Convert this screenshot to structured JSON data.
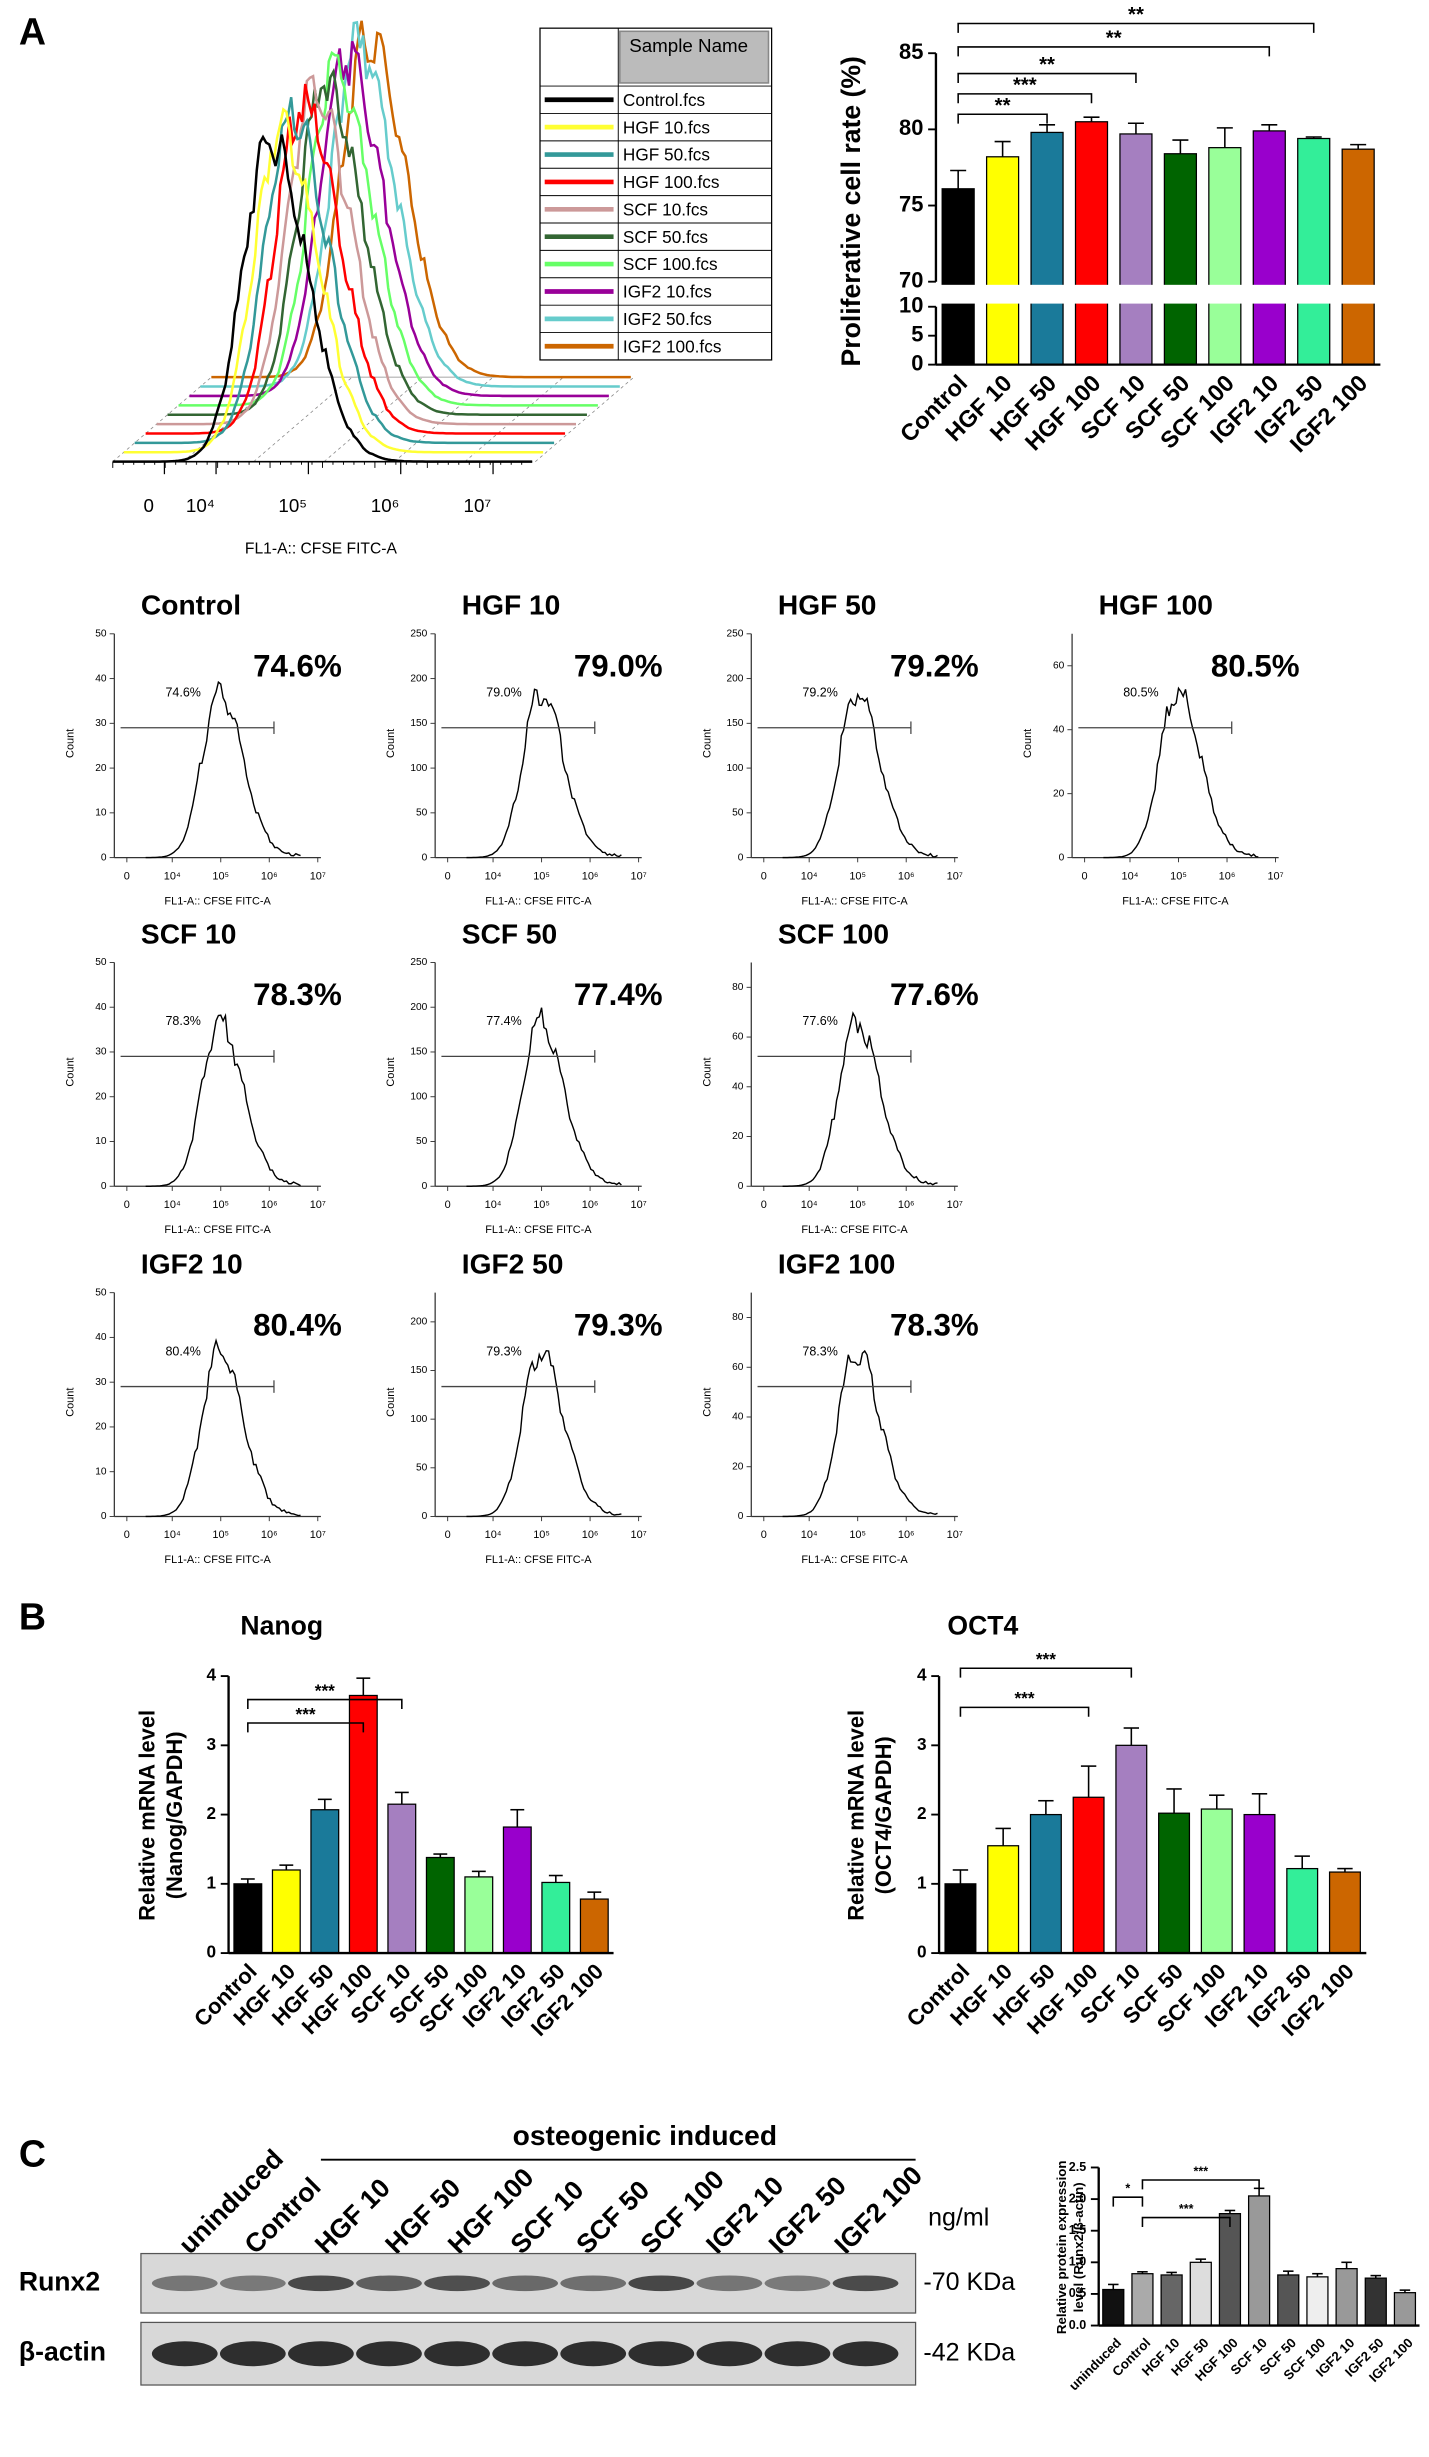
{
  "panels": [
    "A",
    "B",
    "C"
  ],
  "blot": {
    "lanes": [
      "uninduced",
      "Control",
      "HGF 10",
      "HGF 50",
      "HGF 100",
      "SCF 10",
      "SCF 50",
      "SCF 100",
      "IGF2 10",
      "IGF2 50",
      "IGF2 100"
    ],
    "group_label": "osteogenic induced",
    "unit": "ng/ml",
    "rows": [
      {
        "name": "Runx2",
        "size": "-70 KDa"
      },
      {
        "name": "β-actin",
        "size": "-42 KDa"
      }
    ]
  },
  "chart_data": [
    {
      "type": "histogram-overlay",
      "xlabel": "FL1-A:: CFSE FITC-A",
      "legend_title": "Sample Name",
      "log_scale": true,
      "xticks": [
        0,
        {
          "value": 10000,
          "label": "10⁴"
        },
        {
          "value": 100000,
          "label": "10⁵"
        },
        {
          "value": 1000000,
          "label": "10⁶"
        },
        {
          "value": 10000000,
          "label": "10⁷"
        }
      ],
      "series": [
        {
          "name": "Control.fcs",
          "color": "#000000"
        },
        {
          "name": "HGF 10.fcs",
          "color": "#ffff33"
        },
        {
          "name": "HGF 50.fcs",
          "color": "#339999"
        },
        {
          "name": "HGF 100.fcs",
          "color": "#ff0000"
        },
        {
          "name": "SCF 10.fcs",
          "color": "#cc9999"
        },
        {
          "name": "SCF 50.fcs",
          "color": "#336633"
        },
        {
          "name": "SCF 100.fcs",
          "color": "#66ff66"
        },
        {
          "name": "IGF2 10.fcs",
          "color": "#990099"
        },
        {
          "name": "IGF2 50.fcs",
          "color": "#66cccc"
        },
        {
          "name": "IGF2 100.fcs",
          "color": "#cc6600"
        }
      ]
    },
    {
      "type": "bar",
      "ylabel": "Proliferative cell rate (%)",
      "categories": [
        "Control",
        "HGF 10",
        "HGF 50",
        "HGF 100",
        "SCF 10",
        "SCF 50",
        "SCF 100",
        "IGF2 10",
        "IGF2 50",
        "IGF2 100"
      ],
      "values": [
        76.1,
        78.2,
        79.8,
        80.5,
        79.7,
        78.4,
        78.8,
        79.9,
        79.4,
        78.7
      ],
      "errors": [
        1.2,
        1.0,
        0.5,
        0.3,
        0.7,
        0.9,
        1.3,
        0.4,
        0.1,
        0.3
      ],
      "colors": [
        "#000000",
        "#ffff00",
        "#1a7a9a",
        "#ff0000",
        "#a57fc0",
        "#006400",
        "#99ff99",
        "#9900cc",
        "#33ee99",
        "#cc6600"
      ],
      "ylim": [
        0,
        85
      ],
      "yticks": [
        0,
        5,
        10,
        70,
        75,
        80,
        85
      ],
      "axis_break": [
        10,
        70
      ],
      "annotations": [
        {
          "text": "**",
          "from": "Control",
          "to": "HGF 50"
        },
        {
          "text": "***",
          "from": "Control",
          "to": "HGF 100"
        },
        {
          "text": "**",
          "from": "Control",
          "to": "SCF 10"
        },
        {
          "text": "**",
          "from": "Control",
          "to": "IGF2 10"
        },
        {
          "text": "**",
          "from": "Control",
          "to": "IGF2 50"
        }
      ]
    },
    {
      "type": "flow",
      "title": "Control",
      "values": [
        74.6
      ],
      "value_labels": [
        "74.6%"
      ],
      "ylabel": "Count",
      "xlabel": "FL1-A:: CFSE FITC-A",
      "ylim": [
        0,
        50
      ],
      "yticks": [
        0,
        10,
        20,
        30,
        40,
        50
      ],
      "xticks": [
        0,
        {
          "value": 10000,
          "label": "10⁴"
        },
        {
          "value": 100000,
          "label": "10⁵"
        },
        {
          "value": 1000000,
          "label": "10⁶"
        },
        {
          "value": 10000000,
          "label": "10⁷"
        }
      ]
    },
    {
      "type": "flow",
      "title": "HGF 10",
      "values": [
        79.0
      ],
      "value_labels": [
        "79.0%"
      ],
      "ylabel": "Count",
      "xlabel": "FL1-A:: CFSE FITC-A",
      "ylim": [
        0,
        250
      ],
      "yticks": [
        0,
        50,
        100,
        150,
        200,
        250
      ],
      "xticks": [
        0,
        {
          "value": 10000,
          "label": "10⁴"
        },
        {
          "value": 100000,
          "label": "10⁵"
        },
        {
          "value": 1000000,
          "label": "10⁶"
        },
        {
          "value": 10000000,
          "label": "10⁷"
        }
      ]
    },
    {
      "type": "flow",
      "title": "HGF 50",
      "values": [
        79.2
      ],
      "value_labels": [
        "79.2%"
      ],
      "ylabel": "Count",
      "xlabel": "FL1-A:: CFSE FITC-A",
      "ylim": [
        0,
        250
      ],
      "yticks": [
        0,
        50,
        100,
        150,
        200,
        250
      ],
      "xticks": [
        0,
        {
          "value": 10000,
          "label": "10⁴"
        },
        {
          "value": 100000,
          "label": "10⁵"
        },
        {
          "value": 1000000,
          "label": "10⁶"
        },
        {
          "value": 10000000,
          "label": "10⁷"
        }
      ]
    },
    {
      "type": "flow",
      "title": "HGF 100",
      "values": [
        80.5
      ],
      "value_labels": [
        "80.5%"
      ],
      "ylabel": "Count",
      "xlabel": "FL1-A:: CFSE FITC-A",
      "ylim": [
        0,
        70
      ],
      "yticks": [
        0,
        20,
        40,
        60
      ],
      "xticks": [
        0,
        {
          "value": 10000,
          "label": "10⁴"
        },
        {
          "value": 100000,
          "label": "10⁵"
        },
        {
          "value": 1000000,
          "label": "10⁶"
        },
        {
          "value": 10000000,
          "label": "10⁷"
        }
      ]
    },
    {
      "type": "flow",
      "title": "SCF 10",
      "values": [
        78.3
      ],
      "value_labels": [
        "78.3%"
      ],
      "ylabel": "Count",
      "xlabel": "FL1-A:: CFSE FITC-A",
      "ylim": [
        0,
        50
      ],
      "yticks": [
        0,
        10,
        20,
        30,
        40,
        50
      ],
      "xticks": [
        0,
        {
          "value": 10000,
          "label": "10⁴"
        },
        {
          "value": 100000,
          "label": "10⁵"
        },
        {
          "value": 1000000,
          "label": "10⁶"
        },
        {
          "value": 10000000,
          "label": "10⁷"
        }
      ]
    },
    {
      "type": "flow",
      "title": "SCF 50",
      "values": [
        77.4
      ],
      "value_labels": [
        "77.4%"
      ],
      "ylabel": "Count",
      "xlabel": "FL1-A:: CFSE FITC-A",
      "ylim": [
        0,
        250
      ],
      "yticks": [
        0,
        50,
        100,
        150,
        200,
        250
      ],
      "xticks": [
        0,
        {
          "value": 10000,
          "label": "10⁴"
        },
        {
          "value": 100000,
          "label": "10⁵"
        },
        {
          "value": 1000000,
          "label": "10⁶"
        },
        {
          "value": 10000000,
          "label": "10⁷"
        }
      ]
    },
    {
      "type": "flow",
      "title": "SCF 100",
      "values": [
        77.6
      ],
      "value_labels": [
        "77.6%"
      ],
      "ylabel": "Count",
      "xlabel": "FL1-A:: CFSE FITC-A",
      "ylim": [
        0,
        90
      ],
      "yticks": [
        0,
        20,
        40,
        60,
        80
      ],
      "xticks": [
        0,
        {
          "value": 10000,
          "label": "10⁴"
        },
        {
          "value": 100000,
          "label": "10⁵"
        },
        {
          "value": 1000000,
          "label": "10⁶"
        },
        {
          "value": 10000000,
          "label": "10⁷"
        }
      ]
    },
    {
      "type": "flow",
      "title": "IGF2 10",
      "values": [
        80.4
      ],
      "value_labels": [
        "80.4%"
      ],
      "ylabel": "Count",
      "xlabel": "FL1-A:: CFSE FITC-A",
      "ylim": [
        0,
        50
      ],
      "yticks": [
        0,
        10,
        20,
        30,
        40,
        50
      ],
      "xticks": [
        0,
        {
          "value": 10000,
          "label": "10⁴"
        },
        {
          "value": 100000,
          "label": "10⁵"
        },
        {
          "value": 1000000,
          "label": "10⁶"
        },
        {
          "value": 10000000,
          "label": "10⁷"
        }
      ]
    },
    {
      "type": "flow",
      "title": "IGF2 50",
      "values": [
        79.3
      ],
      "value_labels": [
        "79.3%"
      ],
      "ylabel": "Count",
      "xlabel": "FL1-A:: CFSE FITC-A",
      "ylim": [
        0,
        230
      ],
      "yticks": [
        0,
        50,
        100,
        150,
        200
      ],
      "xticks": [
        0,
        {
          "value": 10000,
          "label": "10⁴"
        },
        {
          "value": 100000,
          "label": "10⁵"
        },
        {
          "value": 1000000,
          "label": "10⁶"
        },
        {
          "value": 10000000,
          "label": "10⁷"
        }
      ]
    },
    {
      "type": "flow",
      "title": "IGF2 100",
      "values": [
        78.3
      ],
      "value_labels": [
        "78.3%"
      ],
      "ylabel": "Count",
      "xlabel": "FL1-A:: CFSE FITC-A",
      "ylim": [
        0,
        90
      ],
      "yticks": [
        0,
        20,
        40,
        60,
        80
      ],
      "xticks": [
        0,
        {
          "value": 10000,
          "label": "10⁴"
        },
        {
          "value": 100000,
          "label": "10⁵"
        },
        {
          "value": 1000000,
          "label": "10⁶"
        },
        {
          "value": 10000000,
          "label": "10⁷"
        }
      ]
    },
    {
      "type": "bar",
      "title": "Nanog",
      "ylabel": [
        "Relative mRNA level",
        "(Nanog/GAPDH)"
      ],
      "categories": [
        "Control",
        "HGF 10",
        "HGF 50",
        "HGF 100",
        "SCF 10",
        "SCF 50",
        "SCF 100",
        "IGF2 10",
        "IGF2 50",
        "IGF2 100"
      ],
      "values": [
        1.0,
        1.2,
        2.07,
        3.72,
        2.15,
        1.38,
        1.1,
        1.82,
        1.02,
        0.78
      ],
      "errors": [
        0.07,
        0.07,
        0.15,
        0.25,
        0.17,
        0.05,
        0.08,
        0.25,
        0.1,
        0.1
      ],
      "colors": [
        "#000000",
        "#ffff00",
        "#1a7a9a",
        "#ff0000",
        "#a57fc0",
        "#006400",
        "#99ff99",
        "#9900cc",
        "#33ee99",
        "#cc6600"
      ],
      "ylim": [
        0,
        4
      ],
      "yticks": [
        0,
        1,
        2,
        3,
        4
      ],
      "annotations": [
        {
          "text": "***",
          "from": "Control",
          "to": "HGF 100"
        },
        {
          "text": "***",
          "from": "Control",
          "to": "SCF 10"
        }
      ]
    },
    {
      "type": "bar",
      "title": "OCT4",
      "ylabel": [
        "Relative mRNA level",
        "(OCT4/GAPDH)"
      ],
      "categories": [
        "Control",
        "HGF 10",
        "HGF 50",
        "HGF 100",
        "SCF 10",
        "SCF 50",
        "SCF 100",
        "IGF2 10",
        "IGF2 50",
        "IGF2 100"
      ],
      "values": [
        1.0,
        1.55,
        2.0,
        2.25,
        3.0,
        2.02,
        2.08,
        2.0,
        1.22,
        1.17
      ],
      "errors": [
        0.2,
        0.25,
        0.2,
        0.45,
        0.25,
        0.35,
        0.2,
        0.3,
        0.18,
        0.05
      ],
      "colors": [
        "#000000",
        "#ffff00",
        "#1a7a9a",
        "#ff0000",
        "#a57fc0",
        "#006400",
        "#99ff99",
        "#9900cc",
        "#33ee99",
        "#cc6600"
      ],
      "ylim": [
        0,
        4
      ],
      "yticks": [
        0,
        1,
        2,
        3,
        4
      ],
      "annotations": [
        {
          "text": "***",
          "from": "Control",
          "to": "HGF 100"
        },
        {
          "text": "***",
          "from": "Control",
          "to": "SCF 10"
        }
      ]
    },
    {
      "type": "bar",
      "ylabel": [
        "Relative protein expression",
        "level (Runx2/β-actin)"
      ],
      "categories": [
        "uninduced",
        "Control",
        "HGF 10",
        "HGF 50",
        "HGF 100",
        "SCF 10",
        "SCF 50",
        "SCF 100",
        "IGF2 10",
        "IGF2 50",
        "IGF2 100"
      ],
      "values": [
        0.57,
        0.82,
        0.8,
        1.0,
        1.77,
        2.05,
        0.8,
        0.77,
        0.9,
        0.75,
        0.52
      ],
      "errors": [
        0.08,
        0.03,
        0.04,
        0.05,
        0.05,
        0.12,
        0.06,
        0.05,
        0.1,
        0.04,
        0.04
      ],
      "colors": [
        "#111111",
        "#aaaaaa",
        "#666666",
        "#dddddd",
        "#555555",
        "#999999",
        "#555555",
        "#eeeeee",
        "#999999",
        "#333333",
        "#999999"
      ],
      "ylim": [
        0,
        2.5
      ],
      "yticks": [
        {
          "value": 0,
          "label": "0.0"
        },
        {
          "value": 0.5,
          "label": "0.5"
        },
        {
          "value": 1,
          "label": "1.0"
        },
        {
          "value": 1.5,
          "label": "1.5"
        },
        {
          "value": 2,
          "label": "2.0"
        },
        {
          "value": 2.5,
          "label": "2.5"
        }
      ],
      "annotations": [
        {
          "text": "*",
          "from": "uninduced",
          "to": "Control"
        },
        {
          "text": "***",
          "from": "Control",
          "to": "HGF 100"
        },
        {
          "text": "***",
          "from": "Control",
          "to": "SCF 10"
        }
      ]
    }
  ]
}
